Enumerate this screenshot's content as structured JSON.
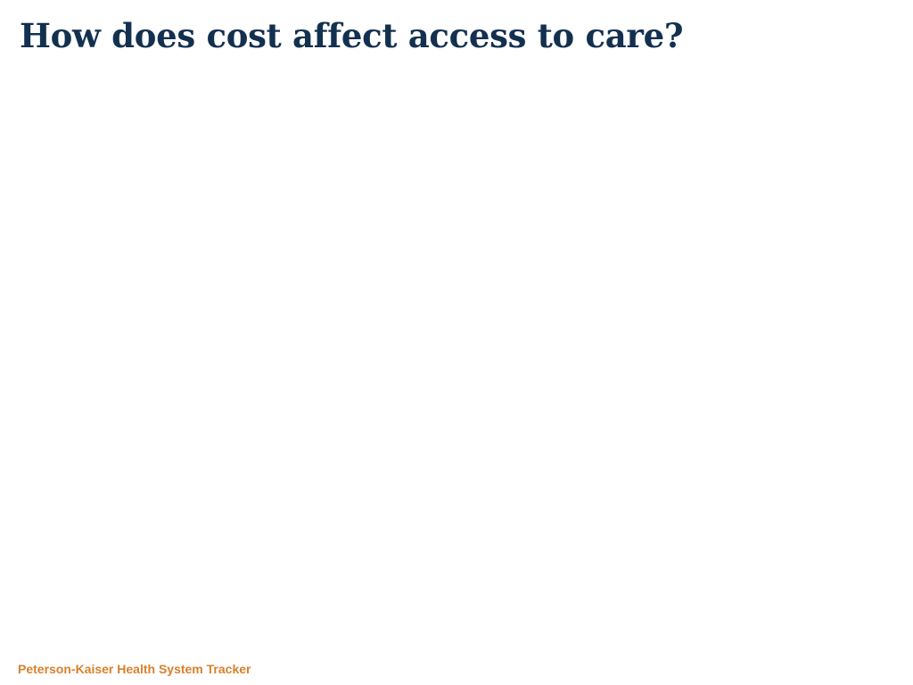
{
  "slide": {
    "title": "How does cost affect access to care?",
    "footer": "Peterson-Kaiser Health System Tracker"
  },
  "colors": {
    "title": "#13304f",
    "footer": "#d9802b",
    "background": "#ffffff"
  }
}
